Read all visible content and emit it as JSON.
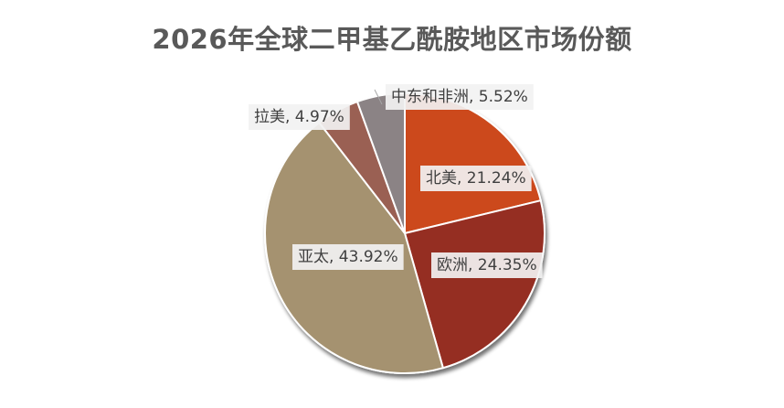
{
  "chart_data": {
    "type": "pie",
    "title": "2026年全球二甲基乙酰胺地区市场份额",
    "slices": [
      {
        "name": "北美",
        "value": 21.24,
        "label": "北美, 21.24%",
        "color": "#cc4a1f"
      },
      {
        "name": "欧洲",
        "value": 24.35,
        "label": "欧洲, 24.35%",
        "color": "#952d22"
      },
      {
        "name": "亚太",
        "value": 43.92,
        "label": "亚太, 43.92%",
        "color": "#a59270"
      },
      {
        "name": "拉美",
        "value": 4.97,
        "label": "拉美, 4.97%",
        "color": "#9a6152"
      },
      {
        "name": "中东和非洲",
        "value": 5.52,
        "label": "中东和非洲, 5.52%",
        "color": "#8b8385"
      }
    ],
    "legend": "none"
  }
}
